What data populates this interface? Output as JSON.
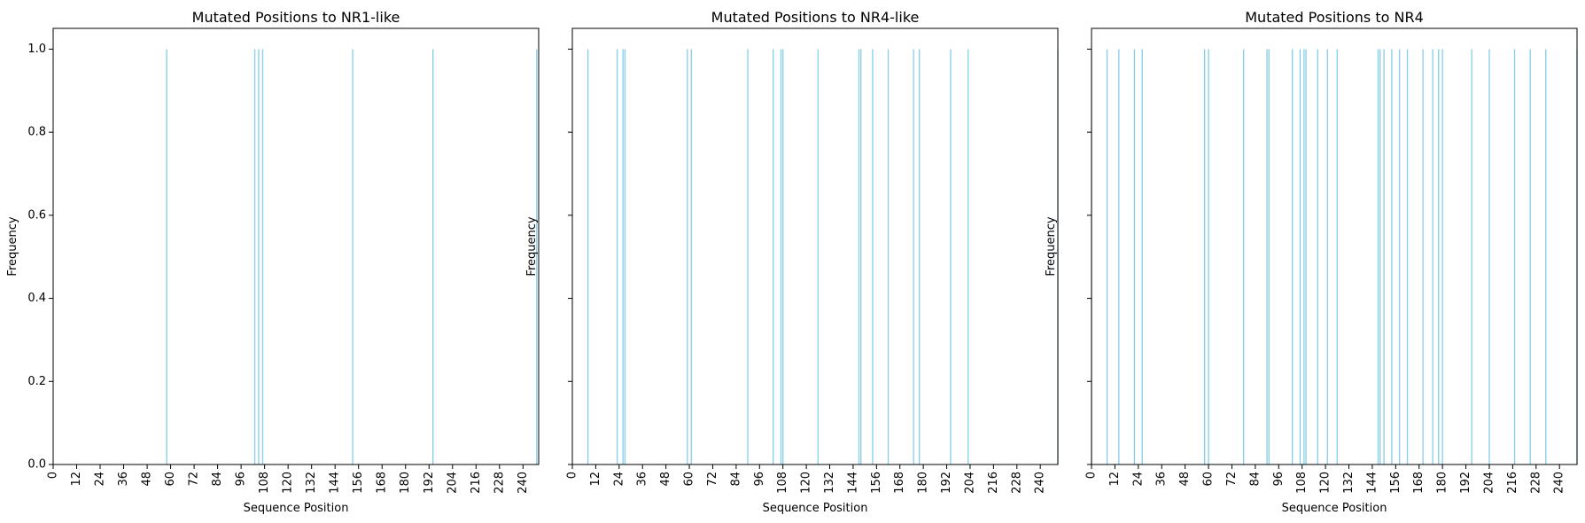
{
  "figure": {
    "bar_color": "#87ceeb",
    "axis_color": "#000000",
    "shared_y": true
  },
  "chart_data": [
    {
      "type": "bar",
      "title": "Mutated Positions to NR1-like",
      "xlabel": "Sequence Position",
      "ylabel": "Frequency",
      "xlim": [
        0,
        248
      ],
      "ylim": [
        0,
        1.05
      ],
      "xticks": [
        0,
        12,
        24,
        36,
        48,
        60,
        72,
        84,
        96,
        108,
        120,
        132,
        144,
        156,
        168,
        180,
        192,
        204,
        216,
        228,
        240
      ],
      "yticks": [
        0.0,
        0.2,
        0.4,
        0.6,
        0.8,
        1.0
      ],
      "ytick_labels": [
        "0.0",
        "0.2",
        "0.4",
        "0.6",
        "0.8",
        "1.0"
      ],
      "show_yticklabels": true,
      "x": [
        58,
        103,
        105,
        107,
        153,
        194,
        247
      ],
      "values": [
        1,
        1,
        1,
        1,
        1,
        1,
        1
      ]
    },
    {
      "type": "bar",
      "title": "Mutated Positions to NR4-like",
      "xlabel": "Sequence Position",
      "ylabel": "Frequency",
      "xlim": [
        0,
        249
      ],
      "ylim": [
        0,
        1.05
      ],
      "xticks": [
        0,
        12,
        24,
        36,
        48,
        60,
        72,
        84,
        96,
        108,
        120,
        132,
        144,
        156,
        168,
        180,
        192,
        204,
        216,
        228,
        240
      ],
      "yticks": [
        0.0,
        0.2,
        0.4,
        0.6,
        0.8,
        1.0
      ],
      "ytick_labels": [
        "0.0",
        "0.2",
        "0.4",
        "0.6",
        "0.8",
        "1.0"
      ],
      "show_yticklabels": false,
      "x": [
        8,
        23,
        26,
        27,
        59,
        61,
        90,
        103,
        107,
        108,
        126,
        147,
        148,
        154,
        162,
        175,
        178,
        194,
        203,
        249
      ],
      "values": [
        1,
        1,
        1,
        1,
        1,
        1,
        1,
        1,
        1,
        1,
        1,
        1,
        1,
        1,
        1,
        1,
        1,
        1,
        1,
        1
      ]
    },
    {
      "type": "bar",
      "title": "Mutated Positions to NR4",
      "xlabel": "Sequence Position",
      "ylabel": "Frequency",
      "xlim": [
        0,
        249
      ],
      "ylim": [
        0,
        1.05
      ],
      "xticks": [
        0,
        12,
        24,
        36,
        48,
        60,
        72,
        84,
        96,
        108,
        120,
        132,
        144,
        156,
        168,
        180,
        192,
        204,
        216,
        228,
        240
      ],
      "yticks": [
        0.0,
        0.2,
        0.4,
        0.6,
        0.8,
        1.0
      ],
      "ytick_labels": [
        "0.0",
        "0.2",
        "0.4",
        "0.6",
        "0.8",
        "1.0"
      ],
      "show_yticklabels": false,
      "x": [
        0,
        8,
        14,
        22,
        26,
        58,
        60,
        78,
        90,
        91,
        103,
        107,
        109,
        110,
        116,
        121,
        126,
        147,
        148,
        150,
        154,
        158,
        162,
        170,
        175,
        178,
        180,
        195,
        204,
        217,
        225,
        233,
        249
      ],
      "values": [
        1,
        1,
        1,
        1,
        1,
        1,
        1,
        1,
        1,
        1,
        1,
        1,
        1,
        1,
        1,
        1,
        1,
        1,
        1,
        1,
        1,
        1,
        1,
        1,
        1,
        1,
        1,
        1,
        1,
        1,
        1,
        1,
        1
      ]
    }
  ]
}
